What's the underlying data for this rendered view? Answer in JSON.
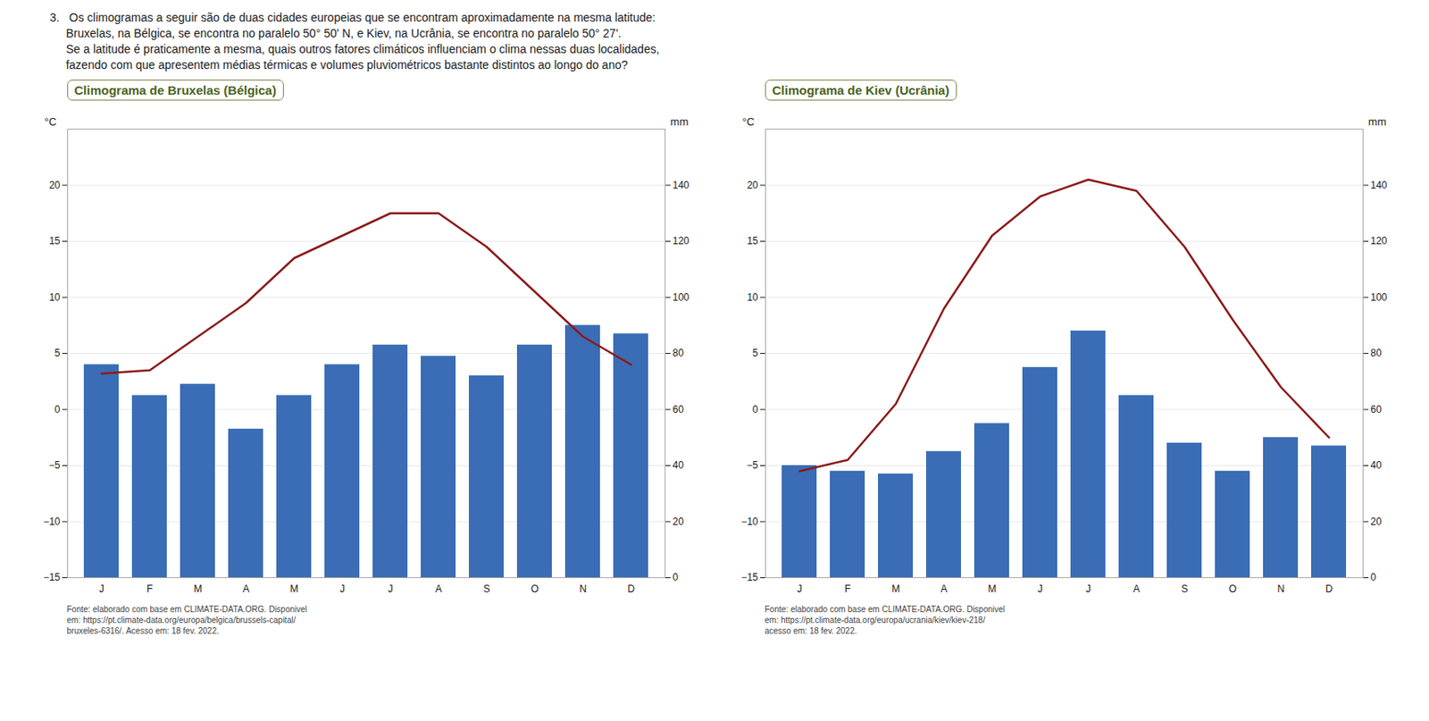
{
  "title": "3.   Os climogramas a seguir são de duas cidades europeias que se encontram aproximadamente na mesma latitude:\n     Bruxelas, na Bélgica, se encontra no paralelo 50° 50' N, e Kiev, na Ucrânia, se encontra no paralelo 50° 27'.\n     Se a latitude é praticamente a mesma, quais outros fatores climáticos influenciam o clima nessas duas localidades,\n     fazendo com que apresentem médias térmicas e volumes pluviométricos bastante distintos ao longo do ano?",
  "chart_data": [
    {
      "type": "bar",
      "title": "Climograma de Bruxelas (Bélgica)",
      "categories": [
        "J",
        "F",
        "M",
        "A",
        "M",
        "J",
        "J",
        "A",
        "S",
        "O",
        "N",
        "D"
      ],
      "series": [
        {
          "type": "bar",
          "axis": "y2",
          "color": "#3a6db5",
          "values": [
            76,
            65,
            69,
            53,
            65,
            76,
            83,
            79,
            72,
            83,
            90,
            87
          ]
        },
        {
          "type": "line",
          "color": "#8b1a1a",
          "values": [
            3.2,
            3.5,
            6.5,
            9.5,
            13.5,
            15.5,
            17.5,
            17.5,
            14.5,
            10.5,
            6.5,
            4.0
          ]
        }
      ],
      "ylabel": "°C",
      "y2label": "mm",
      "ylim": [
        -15,
        25
      ],
      "yticks": [
        -15,
        -10,
        -5,
        0,
        5,
        10,
        15,
        20
      ],
      "y2lim": [
        0,
        160
      ],
      "y2ticks": [
        0,
        20,
        40,
        60,
        80,
        100,
        120,
        140
      ],
      "grid": true,
      "annotations": [
        "Fonte: elaborado com base em CLIMATE-DATA.ORG. Disponivel\nem: https://pt.climate-data.org/europa/belgica/brussels-capital/\nbruxeles-6316/. Acesso em: 18 fev. 2022."
      ]
    },
    {
      "type": "bar",
      "title": "Climograma de Kiev (Ucrânia)",
      "categories": [
        "J",
        "F",
        "M",
        "A",
        "M",
        "J",
        "J",
        "A",
        "S",
        "O",
        "N",
        "D"
      ],
      "series": [
        {
          "type": "bar",
          "axis": "y2",
          "color": "#3a6db5",
          "values": [
            40,
            38,
            37,
            45,
            55,
            75,
            88,
            65,
            48,
            38,
            50,
            47
          ]
        },
        {
          "type": "line",
          "color": "#8b1a1a",
          "values": [
            -5.5,
            -4.5,
            0.5,
            9.0,
            15.5,
            19.0,
            20.5,
            19.5,
            14.5,
            8.0,
            2.0,
            -2.5
          ]
        }
      ],
      "ylabel": "°C",
      "y2label": "mm",
      "ylim": [
        -15,
        25
      ],
      "yticks": [
        -15,
        -10,
        -5,
        0,
        5,
        10,
        15,
        20
      ],
      "y2lim": [
        0,
        160
      ],
      "y2ticks": [
        0,
        20,
        40,
        60,
        80,
        100,
        120,
        140
      ],
      "grid": true,
      "annotations": [
        "Fonte: elaborado com base em CLIMATE-DATA.ORG. Disponivel\nem: https://pt.climate-data.org/europa/ucrania/kiev/kiev-218/\nacesso em: 18 fev. 2022."
      ]
    }
  ]
}
